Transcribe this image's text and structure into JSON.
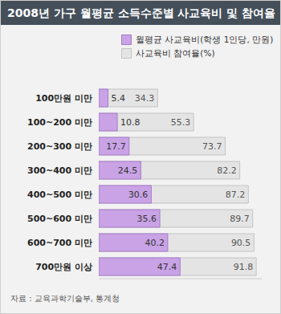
{
  "chart_data": {
    "type": "bar",
    "title": "2008년 가구 월평균 소득수준별 사교육비 및 참여율",
    "source": "자료 : 교육과학기술부, 통계청",
    "orientation": "horizontal",
    "categories": [
      "100만원 미만",
      "100~200 미만",
      "200~300 미만",
      "300~400 미만",
      "400~500 미만",
      "500~600 미만",
      "600~700 미만",
      "700만원 이상"
    ],
    "series": [
      {
        "name": "월평균 사교육비(학생 1인당, 만원)",
        "color": "#c9a3e6",
        "values": [
          5.4,
          10.8,
          17.7,
          24.5,
          30.6,
          35.6,
          40.2,
          47.4
        ]
      },
      {
        "name": "사교육비 참여율(%)",
        "color": "#e4e4e4",
        "values": [
          34.3,
          55.3,
          73.7,
          82.2,
          87.2,
          89.7,
          90.5,
          91.8
        ]
      }
    ],
    "xlim": [
      0,
      95
    ],
    "data_labels": true,
    "grid": false,
    "tick_labels": "y"
  }
}
